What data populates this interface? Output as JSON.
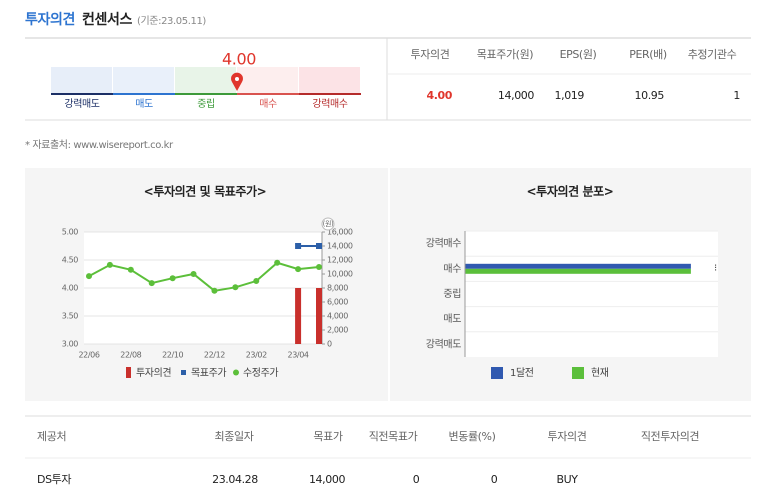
{
  "header": {
    "title": "투자의견",
    "subtitle": "컨센서스",
    "base_date": "(기준:23.05.11)"
  },
  "gauge": {
    "value": 4,
    "value_label": "4.00",
    "levels": [
      "강력매도",
      "매도",
      "중립",
      "매수",
      "강력매수"
    ]
  },
  "summary_table": {
    "columns": [
      "투자의견",
      "목표주가(원)",
      "EPS(원)",
      "PER(배)",
      "추정기관수"
    ],
    "row": [
      "4.00",
      "14,000",
      "1,019",
      "10.95",
      "1"
    ]
  },
  "source": "* 자료출처: www.wisereport.co.kr",
  "chart_data": [
    {
      "type": "combo",
      "title": "<투자의견 및 목표주가>",
      "categories": [
        "22/06",
        null,
        "22/08",
        null,
        "22/10",
        null,
        "22/12",
        null,
        "23/02",
        null,
        "23/04",
        null
      ],
      "ylim": [
        3,
        5
      ],
      "yticks": [
        {
          "value": 3,
          "label": "3.00"
        },
        {
          "value": 3.5,
          "label": "3.50"
        },
        {
          "value": 4,
          "label": "4.00"
        },
        {
          "value": 4.5,
          "label": "4.50"
        },
        {
          "value": 5,
          "label": "5.00"
        }
      ],
      "y2_unit": "(원)",
      "y2lim": [
        0,
        16000
      ],
      "y2ticks": [
        0,
        {
          "value": 2000,
          "label": "2,000"
        },
        {
          "value": 4000,
          "label": "4,000"
        },
        {
          "value": 6000,
          "label": "6,000"
        },
        {
          "value": 8000,
          "label": "8,000"
        },
        {
          "value": 10000,
          "label": "10,000"
        },
        {
          "value": 12000,
          "label": "12,000"
        },
        {
          "value": 14000,
          "label": "14,000"
        },
        {
          "value": 16000,
          "label": "16,000"
        }
      ],
      "grid": true,
      "series": [
        {
          "name": "투자의견",
          "type": "bar",
          "color": "#c9302c",
          "values": [
            null,
            null,
            null,
            null,
            null,
            null,
            null,
            null,
            null,
            null,
            4,
            4
          ]
        },
        {
          "name": "목표주가",
          "type": "line",
          "axis": "y2",
          "color": "#2c5fa8",
          "values": [
            null,
            null,
            null,
            null,
            null,
            null,
            null,
            null,
            null,
            null,
            14000,
            14000
          ]
        },
        {
          "name": "수정주가",
          "type": "line",
          "axis": "y2",
          "color": "#5cbf3a",
          "values": [
            9700,
            11300,
            10600,
            8700,
            9400,
            10000,
            7600,
            8100,
            9000,
            11600,
            10700,
            11000
          ]
        }
      ]
    },
    {
      "type": "hbar",
      "title": "<투자의견 분포>",
      "categories": [
        "강력매수",
        "매수",
        "중립",
        "매도",
        "강력매도"
      ],
      "xlim": [
        0,
        1.12
      ],
      "series": [
        {
          "name": "1달전",
          "color": "#3059b0",
          "values": [
            0,
            1,
            0,
            0,
            0
          ]
        },
        {
          "name": "현재",
          "color": "#5bbf3b",
          "values": [
            0,
            1,
            0,
            0,
            0
          ]
        }
      ]
    }
  ],
  "provider_table": {
    "columns": [
      "제공처",
      "최종일자",
      "목표가",
      "직전목표가",
      "변동률(%)",
      "투자의견",
      "직전투자의견"
    ],
    "rows": [
      [
        "DS투자",
        "23.04.28",
        "14,000",
        "0",
        "0",
        "BUY"
      ]
    ]
  }
}
